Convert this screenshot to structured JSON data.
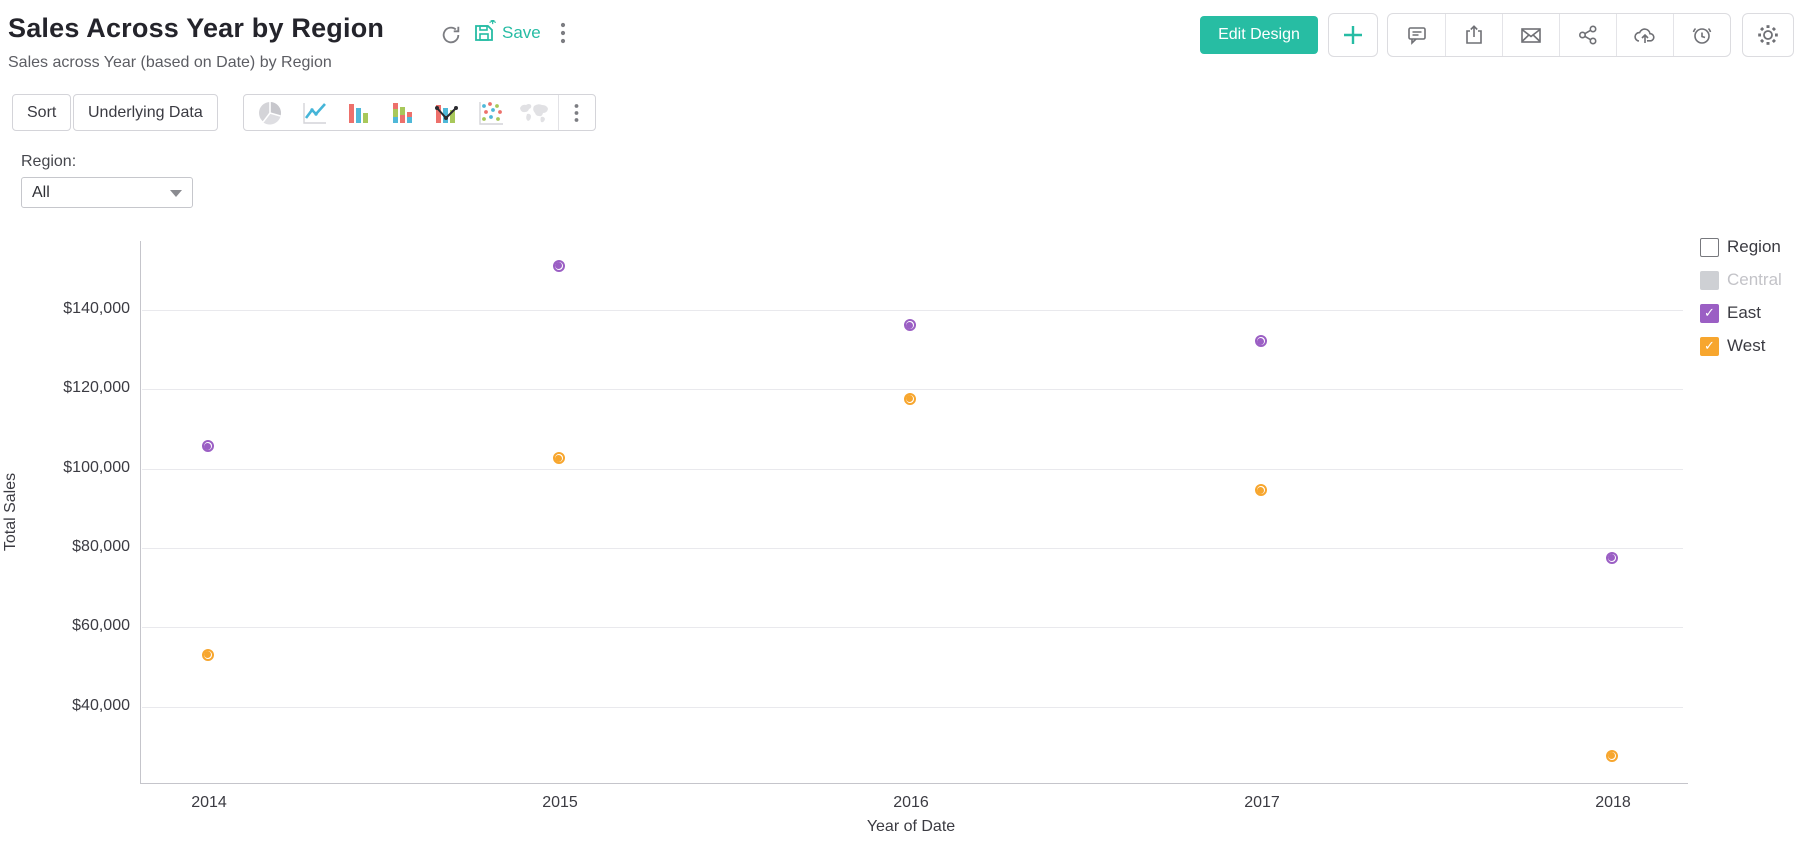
{
  "header": {
    "title": "Sales Across Year by Region",
    "subtitle": "Sales across Year (based on Date) by Region",
    "save_label": "Save",
    "edit_design_label": "Edit Design",
    "accent_color": "#26bca4",
    "action_icons": [
      "refresh-icon",
      "save-icon",
      "kebab-menu-icon",
      "add-icon",
      "comment-icon",
      "export-icon",
      "email-icon",
      "share-icon",
      "publish-cloud-icon",
      "alert-icon",
      "settings-gear-icon"
    ]
  },
  "toolbar": {
    "sort_label": "Sort",
    "underlying_data_label": "Underlying Data",
    "chart_types": [
      "pie",
      "line",
      "bar",
      "stacked-bar",
      "combo",
      "scatter",
      "map"
    ],
    "more_icon": "kebab-menu-icon"
  },
  "filter": {
    "label": "Region:",
    "value": "All"
  },
  "legend": {
    "title": "Region",
    "items": [
      {
        "label": "Central",
        "color": "#ced0d4",
        "text_color": "#c3c3c8",
        "checked": false,
        "disabled": true
      },
      {
        "label": "East",
        "color": "#9b5fc4",
        "text_color": "#3b3b42",
        "checked": true,
        "disabled": false
      },
      {
        "label": "West",
        "color": "#f7a62e",
        "text_color": "#3b3b42",
        "checked": true,
        "disabled": false
      }
    ]
  },
  "chart_data": {
    "type": "scatter",
    "title": "Sales Across Year by Region",
    "xlabel": "Year of Date",
    "ylabel": "Total Sales",
    "categories": [
      "2014",
      "2015",
      "2016",
      "2017",
      "2018"
    ],
    "series": [
      {
        "name": "East",
        "color": "#9b5fc4",
        "values": [
          105000,
          150500,
          135500,
          131500,
          77000
        ]
      },
      {
        "name": "West",
        "color": "#f7a62e",
        "values": [
          52500,
          102000,
          117000,
          94000,
          27000
        ]
      }
    ],
    "ylim": [
      20800,
      157400
    ],
    "yticks": [
      {
        "value": 40000,
        "label": "$40,000"
      },
      {
        "value": 60000,
        "label": "$60,000"
      },
      {
        "value": 80000,
        "label": "$80,000"
      },
      {
        "value": 100000,
        "label": "$100,000"
      },
      {
        "value": 120000,
        "label": "$120,000"
      },
      {
        "value": 140000,
        "label": "$140,000"
      }
    ],
    "grid": true,
    "legend_position": "right"
  }
}
